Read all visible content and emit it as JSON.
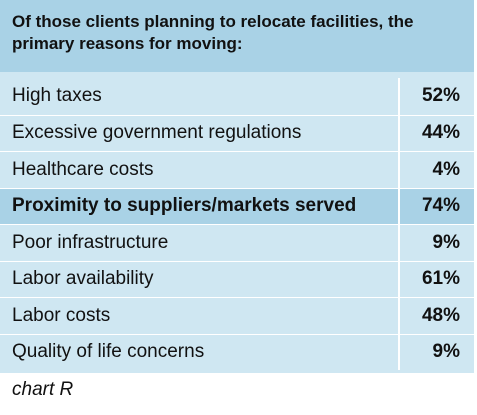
{
  "chart_data": {
    "type": "table",
    "title": "Of those clients planning to relocate facilities, the primary reasons for moving:",
    "rows": [
      {
        "label": "High taxes",
        "value": "52%",
        "highlight": false
      },
      {
        "label": "Excessive government regulations",
        "value": "44%",
        "highlight": false
      },
      {
        "label": "Healthcare costs",
        "value": "4%",
        "highlight": false
      },
      {
        "label": "Proximity to suppliers/markets served",
        "value": "74%",
        "highlight": true
      },
      {
        "label": "Poor infrastructure",
        "value": "9%",
        "highlight": false
      },
      {
        "label": "Labor availability",
        "value": "61%",
        "highlight": false
      },
      {
        "label": "Labor costs",
        "value": "48%",
        "highlight": false
      },
      {
        "label": "Quality of life concerns",
        "value": "9%",
        "highlight": false
      }
    ],
    "caption": "chart R"
  },
  "colors": {
    "header_background": "#a9d2e6",
    "row_background": "#cfe7f2",
    "highlight_background": "#a9d2e6",
    "text": "#111111"
  }
}
